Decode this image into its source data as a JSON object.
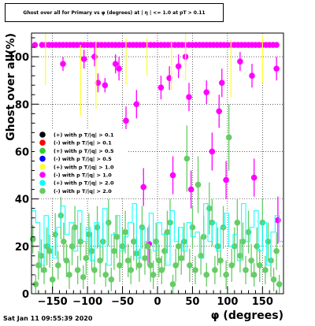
{
  "chart_data": {
    "type": "scatter",
    "title": "Ghost over all for Primary vs φ (degrees) at | η | <= 1.0 at pT > 0.11",
    "xlabel": "φ (degrees)",
    "ylabel": "Ghost over all(%)",
    "xlim": [
      -180,
      180
    ],
    "ylim": [
      0,
      110
    ],
    "xticks": [
      -150,
      -100,
      -50,
      0,
      50,
      100,
      150
    ],
    "yticks": [
      0,
      20,
      40,
      60,
      80,
      100
    ],
    "grid": true,
    "legend_position": "middle-left",
    "legend": [
      {
        "label": "(+) with p T/|q| > 0.1",
        "color": "#000000"
      },
      {
        "label": "(-) with p T/|q| > 0.1",
        "color": "#ff0000"
      },
      {
        "label": "(+) with p T/|q| > 0.5",
        "color": "#33cc33"
      },
      {
        "label": "(-) with p T/|q| > 0.5",
        "color": "#0000ff"
      },
      {
        "label": "(+) with p T/|q| > 1.0",
        "color": "#ffff33"
      },
      {
        "label": "(-) with p T/|q| > 1.0",
        "color": "#ff00ff"
      },
      {
        "label": "(+) with p T/|q| > 2.0",
        "color": "#00ffff"
      },
      {
        "label": "(-) with p T/|q| > 2.0",
        "color": "#66cc66"
      }
    ],
    "series": [
      {
        "name": "(-) with p T/|q| > 1.0",
        "color": "#ff00ff",
        "style": "points",
        "x": [
          -175,
          -165,
          -160,
          -155,
          -150,
          -145,
          -140,
          -135,
          -130,
          -125,
          -120,
          -115,
          -110,
          -105,
          -100,
          -95,
          -90,
          -85,
          -80,
          -75,
          -70,
          -65,
          -60,
          -55,
          -50,
          -45,
          -40,
          -35,
          -30,
          -25,
          -20,
          -15,
          -10,
          -5,
          0,
          5,
          10,
          15,
          20,
          25,
          30,
          35,
          40,
          45,
          50,
          55,
          60,
          65,
          70,
          75,
          80,
          85,
          90,
          95,
          100,
          105,
          110,
          115,
          120,
          125,
          130,
          135,
          140,
          145,
          150,
          155,
          160,
          165,
          170,
          -135,
          -105,
          -90,
          -85,
          -75,
          -60,
          -55,
          -45,
          -30,
          -20,
          -12,
          5,
          17,
          22,
          30,
          40,
          45,
          48,
          70,
          78,
          88,
          92,
          98,
          118,
          135,
          138,
          170,
          172
        ],
        "y": [
          105,
          105,
          105,
          105,
          105,
          105,
          105,
          105,
          105,
          105,
          105,
          105,
          105,
          105,
          105,
          105,
          105,
          105,
          105,
          105,
          105,
          105,
          105,
          105,
          105,
          105,
          105,
          105,
          105,
          105,
          105,
          105,
          105,
          105,
          105,
          105,
          105,
          105,
          105,
          105,
          105,
          105,
          105,
          105,
          105,
          105,
          105,
          105,
          105,
          105,
          105,
          105,
          105,
          105,
          105,
          105,
          105,
          105,
          105,
          105,
          105,
          105,
          105,
          105,
          105,
          105,
          105,
          105,
          105,
          97,
          99,
          100,
          89,
          88,
          97,
          95,
          73,
          80,
          45,
          21,
          87,
          91,
          50,
          96,
          100,
          83,
          44,
          85,
          60,
          77,
          89,
          48,
          98,
          92,
          49,
          95,
          31
        ],
        "yerr": [
          0,
          0,
          0,
          0,
          0,
          0,
          0,
          0,
          0,
          0,
          0,
          0,
          0,
          0,
          0,
          0,
          0,
          0,
          0,
          0,
          0,
          0,
          0,
          0,
          0,
          0,
          0,
          0,
          0,
          0,
          0,
          0,
          0,
          0,
          0,
          0,
          0,
          0,
          0,
          0,
          0,
          0,
          0,
          0,
          0,
          0,
          0,
          0,
          0,
          0,
          0,
          0,
          0,
          0,
          0,
          0,
          0,
          0,
          0,
          0,
          0,
          0,
          0,
          0,
          0,
          0,
          0,
          0,
          0,
          3,
          4,
          4,
          4,
          3,
          4,
          5,
          6,
          6,
          8,
          8,
          5,
          5,
          8,
          5,
          4,
          6,
          8,
          5,
          8,
          7,
          6,
          8,
          4,
          5,
          8,
          5,
          10
        ]
      },
      {
        "name": "(+) with p T/|q| > 1.0",
        "color": "#ffff33",
        "style": "errorbars",
        "x": [
          -160,
          -110,
          -88,
          -45,
          -15,
          20,
          40,
          105,
          150
        ],
        "y": [
          100,
          90,
          92,
          98,
          100,
          96,
          100,
          95,
          99
        ],
        "yerr": [
          12,
          15,
          14,
          10,
          8,
          10,
          10,
          12,
          10
        ]
      },
      {
        "name": "(-) with p T/|q| > 2.0",
        "color": "#66cc66",
        "style": "points",
        "x": [
          -178,
          -174,
          -170,
          -166,
          -162,
          -158,
          -154,
          -150,
          -146,
          -142,
          -138,
          -134,
          -130,
          -126,
          -122,
          -118,
          -114,
          -110,
          -106,
          -102,
          -98,
          -94,
          -90,
          -86,
          -82,
          -78,
          -74,
          -70,
          -66,
          -62,
          -58,
          -54,
          -50,
          -46,
          -42,
          -38,
          -34,
          -30,
          -26,
          -22,
          -18,
          -14,
          -10,
          -6,
          -2,
          2,
          6,
          10,
          14,
          18,
          22,
          26,
          30,
          34,
          38,
          42,
          46,
          50,
          54,
          58,
          62,
          66,
          70,
          74,
          78,
          82,
          86,
          90,
          94,
          98,
          102,
          106,
          110,
          114,
          118,
          122,
          126,
          130,
          134,
          138,
          142,
          146,
          150,
          154,
          158,
          162,
          166,
          170,
          174
        ],
        "y": [
          23,
          4,
          12,
          16,
          10,
          20,
          18,
          6,
          25,
          12,
          33,
          22,
          14,
          8,
          20,
          28,
          10,
          22,
          7,
          15,
          25,
          18,
          10,
          28,
          14,
          22,
          8,
          30,
          6,
          18,
          24,
          12,
          20,
          26,
          14,
          10,
          22,
          17,
          12,
          28,
          15,
          20,
          12,
          8,
          22,
          14,
          10,
          18,
          26,
          30,
          4,
          12,
          20,
          15,
          22,
          57,
          12,
          28,
          10,
          46,
          16,
          24,
          8,
          36,
          30,
          10,
          20,
          14,
          28,
          8,
          66,
          12,
          20,
          30,
          16,
          22,
          10,
          26,
          14,
          8,
          20,
          12,
          30,
          10,
          22,
          14,
          6,
          18,
          4
        ],
        "yerr": [
          6,
          4,
          6,
          7,
          6,
          8,
          7,
          5,
          9,
          6,
          10,
          8,
          7,
          6,
          8,
          9,
          6,
          8,
          5,
          7,
          9,
          8,
          6,
          9,
          7,
          8,
          5,
          10,
          5,
          8,
          9,
          7,
          8,
          9,
          7,
          6,
          8,
          7,
          7,
          9,
          7,
          8,
          7,
          6,
          8,
          7,
          6,
          8,
          9,
          10,
          4,
          7,
          8,
          7,
          8,
          14,
          7,
          9,
          6,
          12,
          8,
          9,
          5,
          11,
          10,
          6,
          8,
          7,
          9,
          6,
          14,
          7,
          8,
          10,
          7,
          8,
          6,
          9,
          7,
          5,
          8,
          7,
          10,
          6,
          8,
          7,
          5,
          8,
          4
        ]
      },
      {
        "name": "(+) with p T/|q| > 2.0",
        "color": "#00ffff",
        "style": "histogram",
        "x": [
          -180,
          -174,
          -168,
          -162,
          -156,
          -150,
          -144,
          -138,
          -132,
          -126,
          -120,
          -114,
          -108,
          -102,
          -96,
          -90,
          -84,
          -78,
          -72,
          -66,
          -60,
          -54,
          -48,
          -42,
          -36,
          -30,
          -24,
          -18,
          -12,
          -6,
          0,
          6,
          12,
          18,
          24,
          30,
          36,
          42,
          48,
          54,
          60,
          66,
          72,
          78,
          84,
          90,
          96,
          102,
          108,
          114,
          120,
          126,
          132,
          138,
          144,
          150,
          156,
          162,
          168,
          174
        ],
        "y": [
          35,
          30,
          12,
          33,
          20,
          15,
          28,
          37,
          25,
          30,
          18,
          35,
          22,
          28,
          14,
          30,
          20,
          36,
          12,
          25,
          33,
          18,
          24,
          30,
          38,
          15,
          28,
          22,
          34,
          18,
          30,
          25,
          12,
          35,
          22,
          28,
          18,
          30,
          24,
          26,
          15,
          38,
          22,
          30,
          18,
          28,
          34,
          20,
          25,
          14,
          38,
          22,
          28,
          35,
          18,
          30,
          12,
          26,
          33,
          22
        ]
      }
    ]
  },
  "title_text": "Ghost over all for Primary vs φ (degrees) at | η | <= 1.0 at pT > 0.11",
  "footer": {
    "date": "Sat Jan 11 09:55:39 2020"
  }
}
